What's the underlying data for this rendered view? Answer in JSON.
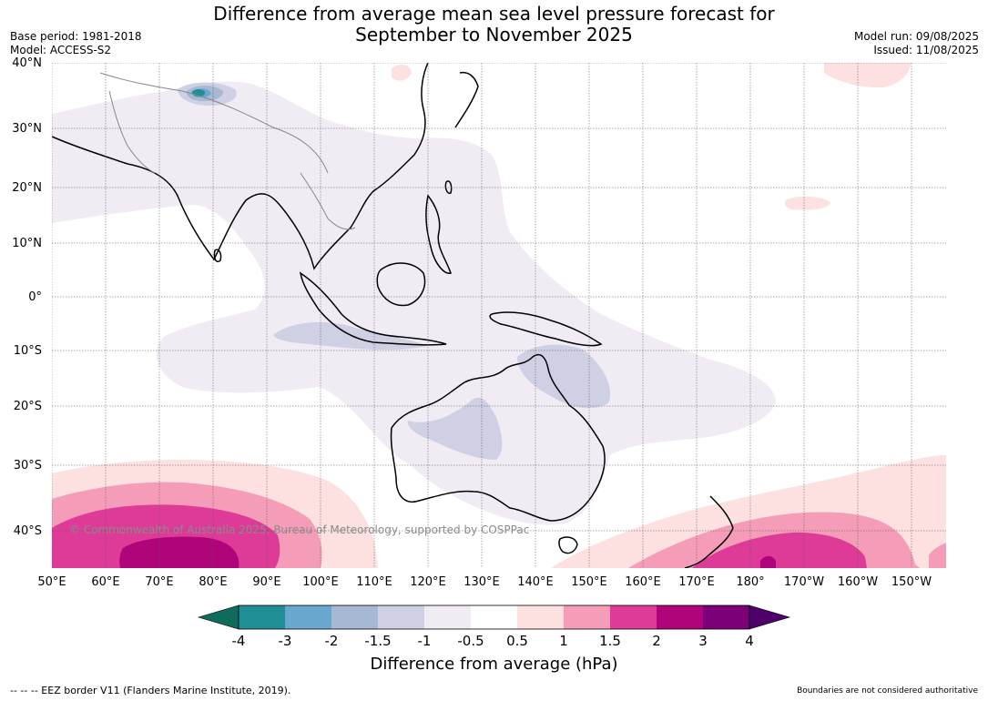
{
  "title": {
    "line1": "Difference from average mean sea level pressure forecast for",
    "line2": "September to November 2025"
  },
  "meta_left": {
    "base_period": "Base period: 1981-2018",
    "model": "Model: ACCESS-S2"
  },
  "meta_right": {
    "model_run": "Model run: 09/08/2025",
    "issued": "Issued: 11/08/2025"
  },
  "map": {
    "longitude_labels": [
      "50°E",
      "60°E",
      "70°E",
      "80°E",
      "90°E",
      "100°E",
      "110°E",
      "120°E",
      "130°E",
      "140°E",
      "150°E",
      "160°E",
      "170°E",
      "180°",
      "170°W",
      "160°W",
      "150°W"
    ],
    "latitude_labels": [
      "40°N",
      "30°N",
      "20°N",
      "10°N",
      "0°",
      "10°S",
      "20°S",
      "30°S",
      "40°S"
    ],
    "copyright": "© Commonwealth of Australia 2025, Bureau of Meteorology, supported by COSPPac"
  },
  "colorbar": {
    "labels": [
      "-4",
      "-3",
      "-2",
      "-1.5",
      "-1",
      "-0.5",
      "0.5",
      "1",
      "1.5",
      "2",
      "3",
      "4"
    ],
    "colors": [
      "#0f6b5b",
      "#1f8f95",
      "#68a8cf",
      "#a6b8d4",
      "#cfd0e4",
      "#f1ebf4",
      "#ffffff",
      "#fde0e0",
      "#f59db8",
      "#de3b98",
      "#b0047a",
      "#7c0077",
      "#4f006b"
    ],
    "title": "Difference from average (hPa)"
  },
  "footer": {
    "left": "--  --  -- EEZ border V11 (Flanders Marine Institute, 2019).",
    "right": "Boundaries are not considered authoritative"
  }
}
